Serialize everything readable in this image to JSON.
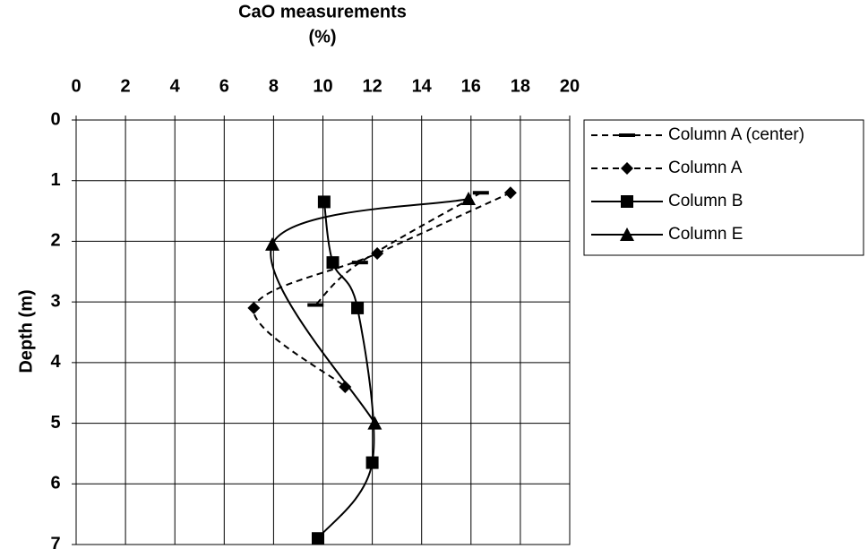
{
  "chart_data": {
    "type": "line",
    "xlabel_lines": [
      "CaO measurements",
      "(%)"
    ],
    "ylabel": "Depth (m)",
    "xlim": [
      0,
      20
    ],
    "xticks": [
      0,
      2,
      4,
      6,
      8,
      10,
      12,
      14,
      16,
      18,
      20
    ],
    "ylim": [
      0,
      7
    ],
    "yticks": [
      0,
      1,
      2,
      3,
      4,
      5,
      6,
      7
    ],
    "y_inverted": true,
    "x_axis_position": "top",
    "grid": true,
    "legend": "right",
    "series": [
      {
        "name": "Column A (center)",
        "color": "#000000",
        "dashed": true,
        "marker": "dash",
        "x": [
          16.4,
          11.5,
          9.7
        ],
        "values": [
          1.2,
          2.35,
          3.05
        ]
      },
      {
        "name": "Column A",
        "color": "#000000",
        "dashed": true,
        "marker": "diamond",
        "x": [
          17.6,
          12.2,
          7.2,
          10.9
        ],
        "values": [
          1.2,
          2.2,
          3.1,
          4.4
        ]
      },
      {
        "name": "Column B",
        "color": "#000000",
        "dashed": false,
        "marker": "square",
        "x": [
          10.05,
          10.4,
          11.4,
          12.0,
          9.8
        ],
        "values": [
          1.35,
          2.35,
          3.1,
          5.65,
          6.9
        ]
      },
      {
        "name": "Column E",
        "color": "#000000",
        "dashed": false,
        "marker": "triangle",
        "x": [
          15.9,
          7.95,
          12.1
        ],
        "values": [
          1.3,
          2.05,
          5.0
        ]
      }
    ]
  }
}
